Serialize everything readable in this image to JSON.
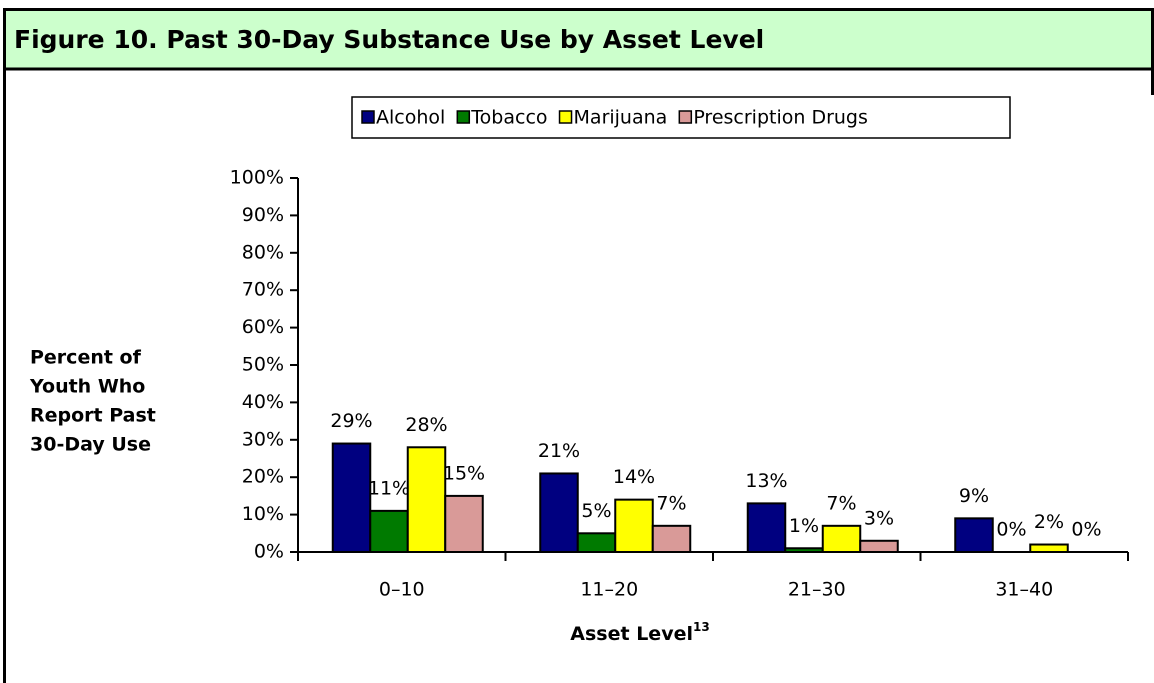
{
  "chart_data": {
    "type": "bar",
    "title": "Figure 10.  Past 30-Day Substance Use by Asset Level",
    "ylabel": [
      "Percent of",
      "Youth Who",
      "Report Past",
      "30-Day Use"
    ],
    "xlabel": "Asset Level",
    "xlabel_note": "13",
    "categories": [
      "0–10",
      "11–20",
      "21–30",
      "31–40"
    ],
    "series": [
      {
        "name": "Alcohol",
        "color": "#000080",
        "values": [
          29,
          21,
          13,
          9
        ],
        "value_labels": [
          "29%",
          "21%",
          "13%",
          "9%"
        ]
      },
      {
        "name": "Tobacco",
        "color": "#007a00",
        "values": [
          11,
          5,
          1,
          0
        ],
        "value_labels": [
          "11%",
          "5%",
          "1%",
          "0%"
        ]
      },
      {
        "name": "Marijuana",
        "color": "#ffff00",
        "values": [
          28,
          14,
          7,
          2
        ],
        "value_labels": [
          "28%",
          "14%",
          "7%",
          "2%"
        ]
      },
      {
        "name": "Prescription Drugs",
        "color": "#d99a98",
        "values": [
          15,
          7,
          3,
          0
        ],
        "value_labels": [
          "15%",
          "7%",
          "3%",
          "0%"
        ]
      }
    ],
    "ylim": [
      0,
      100
    ],
    "yticks": [
      {
        "value": 0,
        "label": "0%"
      },
      {
        "value": 10,
        "label": "10%"
      },
      {
        "value": 20,
        "label": "20%"
      },
      {
        "value": 30,
        "label": "30%"
      },
      {
        "value": 40,
        "label": "40%"
      },
      {
        "value": 50,
        "label": "50%"
      },
      {
        "value": 60,
        "label": "60%"
      },
      {
        "value": 70,
        "label": "70%"
      },
      {
        "value": 80,
        "label": "80%"
      },
      {
        "value": 90,
        "label": "90%"
      },
      {
        "value": 100,
        "label": "100%"
      }
    ],
    "legend": "top"
  }
}
